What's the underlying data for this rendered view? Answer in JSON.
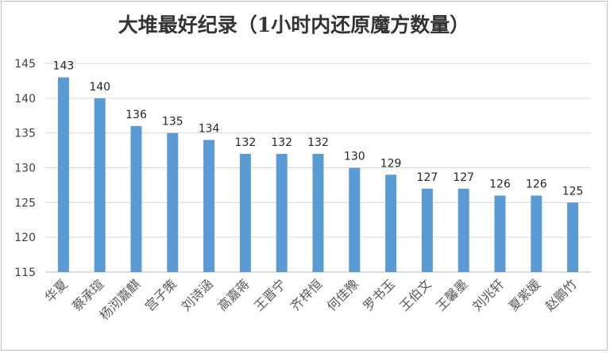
{
  "chart_data": {
    "type": "bar",
    "title": "大堆最好纪录（1小时内还原魔方数量）",
    "categories": [
      "华夏",
      "蔡承瑄",
      "杨沏嘉麒",
      "宫子策",
      "刘诗涵",
      "高嘉蒋",
      "王晋宁",
      "齐梓恒",
      "何佳豫",
      "罗书玉",
      "王伯文",
      "王馨墨",
      "刘兆轩",
      "夏紫媛",
      "赵鹏竹"
    ],
    "values": [
      143,
      140,
      136,
      135,
      134,
      132,
      132,
      132,
      130,
      129,
      127,
      127,
      126,
      126,
      125
    ],
    "ylim": [
      115,
      145
    ],
    "yticks": [
      115,
      120,
      125,
      130,
      135,
      140,
      145
    ],
    "xlabel": "",
    "ylabel": "",
    "grid": true,
    "bar_color": "#5b9bd5",
    "grid_color": "#d9d9d9"
  }
}
